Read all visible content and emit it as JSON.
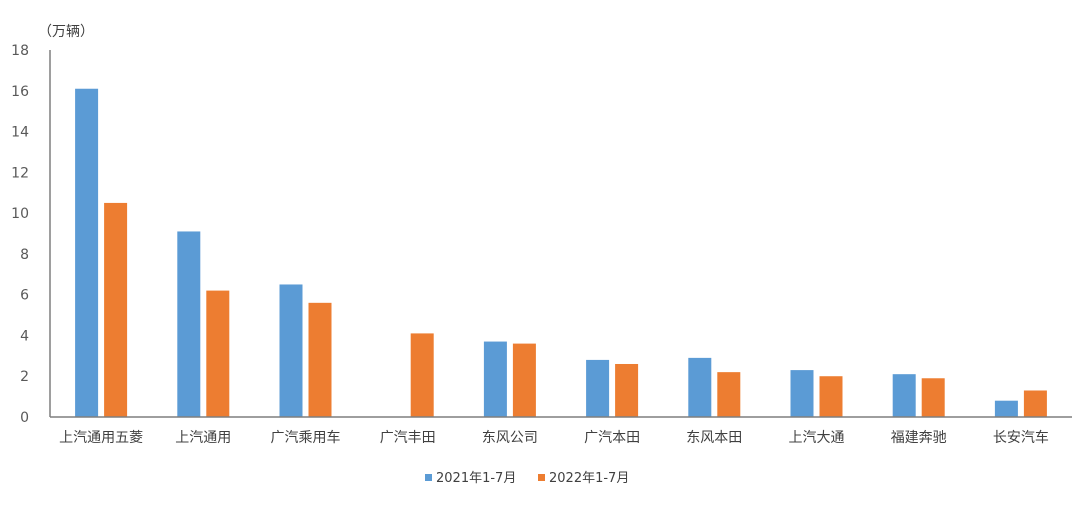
{
  "chart_data": {
    "type": "bar",
    "unit_label": "（万辆）",
    "categories": [
      "上汽通用五菱",
      "上汽通用",
      "广汽乘用车",
      "广汽丰田",
      "东风公司",
      "广汽本田",
      "东风本田",
      "上汽大通",
      "福建奔驰",
      "长安汽车"
    ],
    "series": [
      {
        "name": "2021年1-7月",
        "color": "#5b9bd5",
        "values": [
          16.1,
          9.1,
          6.5,
          null,
          3.7,
          2.8,
          2.9,
          2.3,
          2.1,
          0.8
        ]
      },
      {
        "name": "2022年1-7月",
        "color": "#ed7d31",
        "values": [
          10.5,
          6.2,
          5.6,
          4.1,
          3.6,
          2.6,
          2.2,
          2.0,
          1.9,
          1.3
        ]
      }
    ],
    "ylim": [
      0,
      18
    ],
    "yticks": [
      0,
      2,
      4,
      6,
      8,
      10,
      12,
      14,
      16,
      18
    ],
    "grid": false,
    "legend": "bottom"
  }
}
